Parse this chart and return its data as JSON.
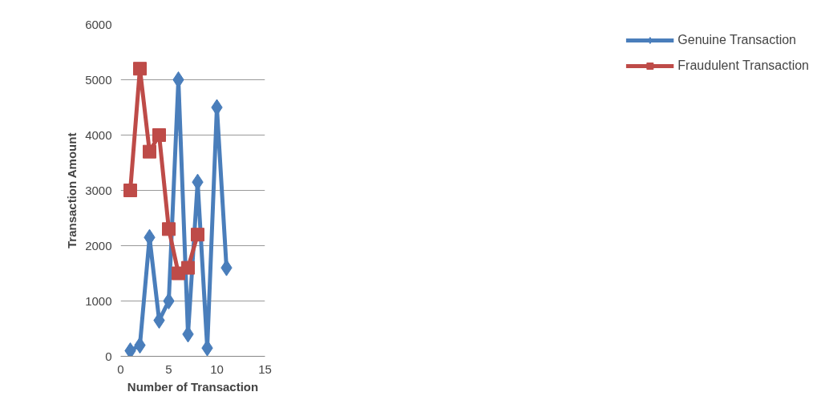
{
  "chart_data": {
    "type": "line",
    "xlabel": "Number of Transaction",
    "ylabel": "Transaction Amount",
    "x": [
      1,
      2,
      3,
      4,
      5,
      6,
      7,
      8,
      9,
      10,
      11
    ],
    "series": [
      {
        "name": "Genuine Transaction",
        "color": "#4a7ebb",
        "marker": "diamond",
        "values": [
          100,
          200,
          2150,
          650,
          1000,
          5000,
          400,
          3150,
          150,
          4500,
          1600
        ]
      },
      {
        "name": "Fraudulent Transaction",
        "color": "#be4b48",
        "marker": "square",
        "x": [
          1,
          2,
          3,
          4,
          5,
          6,
          7,
          8
        ],
        "values": [
          3000,
          5200,
          3700,
          4000,
          2300,
          1500,
          1600,
          2200
        ]
      }
    ],
    "xlim": [
      0,
      15
    ],
    "xticks": [
      0,
      5,
      10,
      15
    ],
    "ylim": [
      0,
      6000
    ],
    "yticks": [
      0,
      1000,
      2000,
      3000,
      4000,
      5000,
      6000
    ],
    "grid": "y",
    "legend": "right",
    "line_style": "solid"
  }
}
